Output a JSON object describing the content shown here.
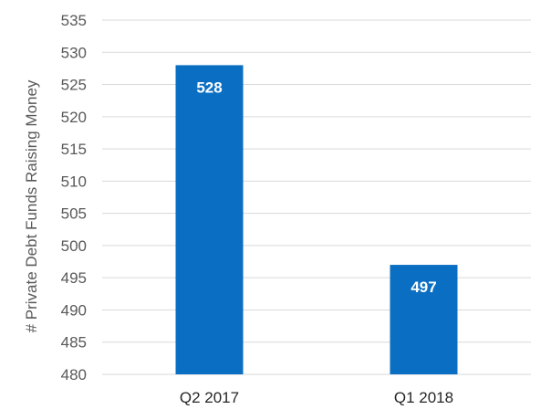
{
  "chart_data": {
    "type": "bar",
    "categories": [
      "Q2 2017",
      "Q1 2018"
    ],
    "values": [
      528,
      497
    ],
    "data_labels": [
      "528",
      "497"
    ],
    "ylabel": "# Private Debt Funds Raising Money",
    "xlabel": "",
    "ylim": [
      480,
      535
    ],
    "yticks": [
      480,
      485,
      490,
      495,
      500,
      505,
      510,
      515,
      520,
      525,
      530,
      535
    ],
    "ytick_labels": [
      "480",
      "485",
      "490",
      "495",
      "500",
      "505",
      "510",
      "515",
      "520",
      "525",
      "530",
      "535"
    ],
    "grid": true,
    "legend": "none",
    "bar_color": "#0a6fc2"
  }
}
